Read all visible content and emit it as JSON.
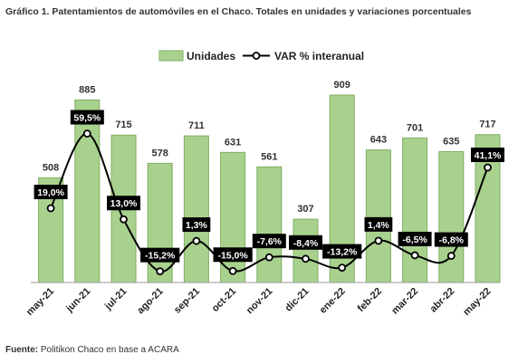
{
  "title": "Gráfico 1. Patentamientos de automóviles en el Chaco. Totales en unidades y variaciones porcentuales",
  "source": {
    "label": "Fuente:",
    "text": " Politikon Chaco en base a ACARA"
  },
  "colors": {
    "bar_fill": "#a9d18e",
    "bar_stroke": "#7fae62",
    "line": "#000000",
    "label_bg": "#000000",
    "label_text": "#ffffff",
    "axis": "#999999"
  },
  "chart_data": {
    "type": "bar",
    "categories": [
      "may-21",
      "jun-21",
      "jul-21",
      "ago-21",
      "sep-21",
      "oct-21",
      "nov-21",
      "dic-21",
      "ene-22",
      "feb-22",
      "mar-22",
      "abr-22",
      "may-22"
    ],
    "series": [
      {
        "name": "Unidades",
        "type": "bar",
        "axis": "left",
        "values": [
          508,
          885,
          715,
          578,
          711,
          631,
          561,
          307,
          909,
          643,
          701,
          635,
          717
        ]
      },
      {
        "name": "VAR % interanual",
        "type": "line",
        "axis": "right",
        "values": [
          19.0,
          59.5,
          13.0,
          -15.2,
          1.3,
          -15.0,
          -7.6,
          -8.4,
          -13.2,
          1.4,
          -6.5,
          -6.8,
          41.1
        ],
        "labels": [
          "19,0%",
          "59,5%",
          "13,0%",
          "-15,2%",
          "1,3%",
          "-15,0%",
          "-7,6%",
          "-8,4%",
          "-13,2%",
          "1,4%",
          "-6,5%",
          "-6,8%",
          "41,1%"
        ]
      }
    ],
    "ylim_left": [
      0,
      950
    ],
    "ylim_right": [
      -25,
      70
    ],
    "legend": "top-center",
    "grid": false
  }
}
